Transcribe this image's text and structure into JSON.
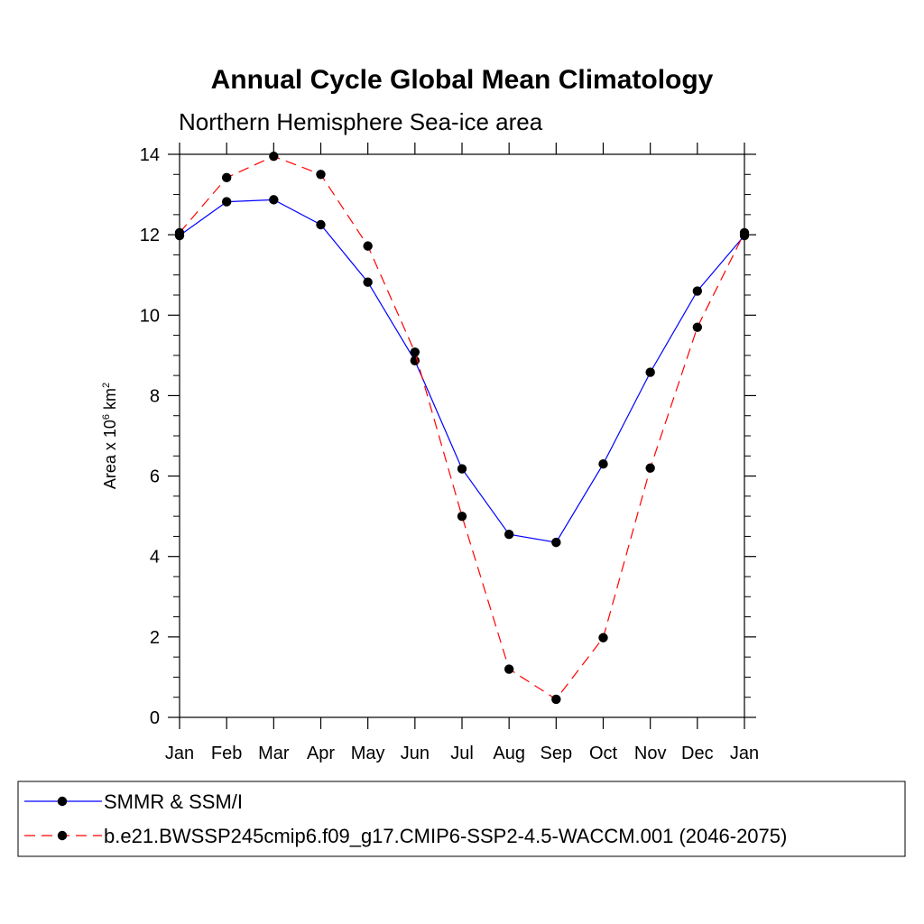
{
  "chart_data": {
    "type": "line",
    "title": "Annual Cycle Global Mean Climatology",
    "subtitle": "Northern Hemisphere Sea-ice area",
    "ylabel": {
      "prefix": "Area x 10",
      "exp1": "6",
      "mid": " km",
      "exp2": "2"
    },
    "xlabel": "",
    "categories": [
      "Jan",
      "Feb",
      "Mar",
      "Apr",
      "May",
      "Jun",
      "Jul",
      "Aug",
      "Sep",
      "Oct",
      "Nov",
      "Dec",
      "Jan"
    ],
    "ylim": [
      0,
      14
    ],
    "yticks": [
      0,
      2,
      4,
      6,
      8,
      10,
      12,
      14
    ],
    "series": [
      {
        "name": "SMMR & SSM/I",
        "color": "#0000ff",
        "dash": "solid",
        "values": [
          11.98,
          12.82,
          12.87,
          12.25,
          10.82,
          8.87,
          6.18,
          4.55,
          4.35,
          6.3,
          8.58,
          10.6,
          11.98
        ]
      },
      {
        "name": "b.e21.BWSSP245cmip6.f09_g17.CMIP6-SSP2-4.5-WACCM.001 (2046-2075)",
        "color": "#ff0000",
        "dash": "dashed",
        "values": [
          12.05,
          13.42,
          13.95,
          13.5,
          11.72,
          9.08,
          5.0,
          1.2,
          0.45,
          1.98,
          6.2,
          9.7,
          12.05
        ]
      }
    ],
    "legend_position": "bottom"
  }
}
